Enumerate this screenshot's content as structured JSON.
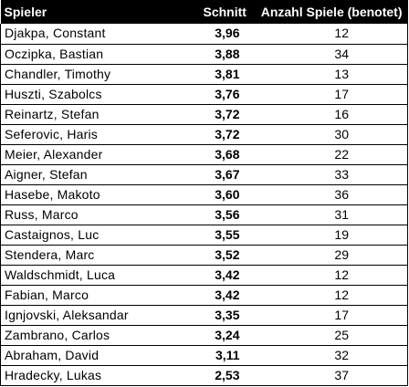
{
  "table": {
    "headers": {
      "player": "Spieler",
      "average": "Schnitt",
      "games": "Anzahl Spiele (benotet)"
    },
    "rows": [
      {
        "player": "Djakpa, Constant",
        "average": "3,96",
        "games": "12"
      },
      {
        "player": "Oczipka, Bastian",
        "average": "3,88",
        "games": "34"
      },
      {
        "player": "Chandler, Timothy",
        "average": "3,81",
        "games": "13"
      },
      {
        "player": "Huszti, Szabolcs",
        "average": "3,76",
        "games": "17"
      },
      {
        "player": "Reinartz, Stefan",
        "average": "3,72",
        "games": "16"
      },
      {
        "player": "Seferovic, Haris",
        "average": "3,72",
        "games": "30"
      },
      {
        "player": "Meier, Alexander",
        "average": "3,68",
        "games": "22"
      },
      {
        "player": "Aigner, Stefan",
        "average": "3,67",
        "games": "33"
      },
      {
        "player": "Hasebe, Makoto",
        "average": "3,60",
        "games": "36"
      },
      {
        "player": "Russ, Marco",
        "average": "3,56",
        "games": "31"
      },
      {
        "player": "Castaignos, Luc",
        "average": "3,55",
        "games": "19"
      },
      {
        "player": "Stendera, Marc",
        "average": "3,52",
        "games": "29"
      },
      {
        "player": "Waldschmidt, Luca",
        "average": "3,42",
        "games": "12"
      },
      {
        "player": "Fabian, Marco",
        "average": "3,42",
        "games": "12"
      },
      {
        "player": "Ignjovski, Aleksandar",
        "average": "3,35",
        "games": "17"
      },
      {
        "player": "Zambrano, Carlos",
        "average": "3,24",
        "games": "25"
      },
      {
        "player": "Abraham, David",
        "average": "3,11",
        "games": "32"
      },
      {
        "player": "Hradecky, Lukas",
        "average": "2,53",
        "games": "37"
      }
    ]
  }
}
